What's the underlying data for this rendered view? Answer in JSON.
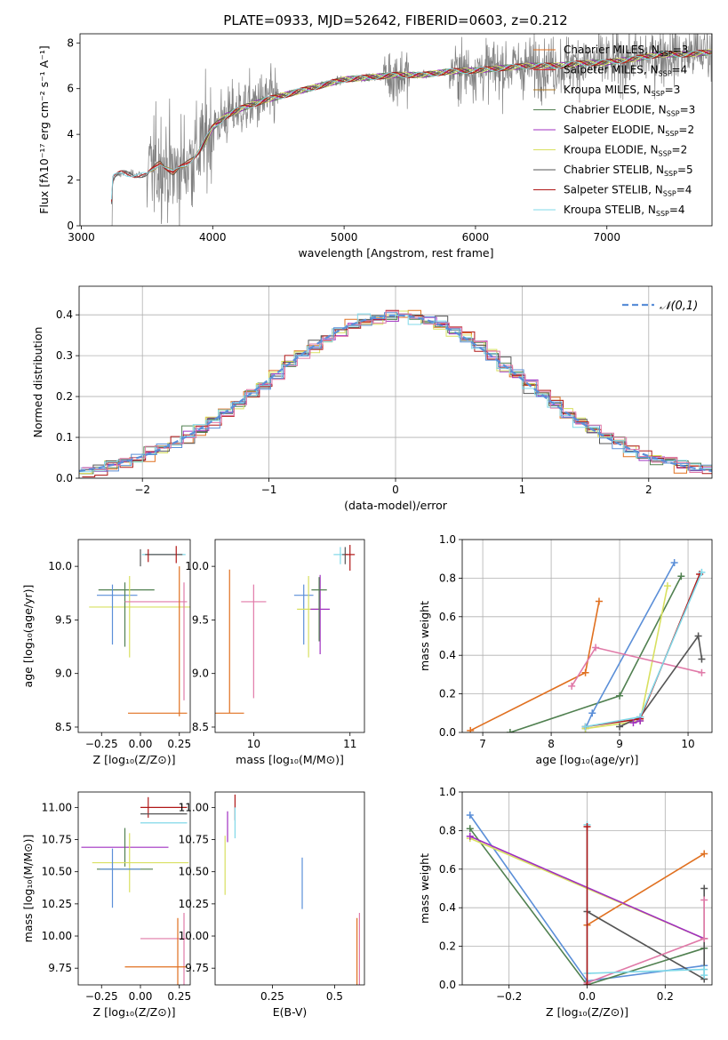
{
  "figure_title": "PLATE=0933, MJD=52642, FIBERID=0603, z=0.212",
  "colors": {
    "orange": "#e07020",
    "purple": "#a030c0",
    "yellow": "#d8e060",
    "gray": "#555555",
    "red": "#b01818",
    "cyan": "#80d8e8",
    "blue": "#5b8fd8",
    "green": "#508050",
    "pink": "#e07aa8",
    "brown": "#b07820",
    "spectrum": "#808080"
  },
  "chart_data": [
    {
      "id": "spectrum",
      "type": "line",
      "xlabel": "wavelength [Angstrom, rest frame]",
      "ylabel": "Flux [fλ10⁻¹⁷ erg cm⁻² s⁻¹ A⁻¹]",
      "xlim": [
        2990,
        7800
      ],
      "ylim": [
        0,
        8.4
      ],
      "xticks": [
        3000,
        4000,
        5000,
        6000,
        7000
      ],
      "yticks": [
        0,
        2,
        4,
        6,
        8
      ],
      "observed_continuum": {
        "x": [
          3220,
          3240,
          3300,
          3400,
          3500,
          3600,
          3700,
          3800,
          3900,
          4000,
          4100,
          4200,
          4400,
          4600,
          4800,
          5000,
          5200,
          5400,
          5600,
          5800,
          6000,
          6200,
          6400,
          6600,
          6800,
          7000,
          7200,
          7400,
          7600,
          7800
        ],
        "y": [
          0,
          2.1,
          2.3,
          2.25,
          2.2,
          2.8,
          2.3,
          2.7,
          3.3,
          4.3,
          4.8,
          5.1,
          5.5,
          5.8,
          6.1,
          6.4,
          6.5,
          6.6,
          6.6,
          6.75,
          6.8,
          6.9,
          7.0,
          7.0,
          7.1,
          7.15,
          7.3,
          7.5,
          7.5,
          7.6
        ]
      },
      "legend": [
        {
          "label": "Chabrier MILES, N",
          "sub": "SSP",
          "value": "=3",
          "color": "#e07020"
        },
        {
          "label": "Salpeter MILES, N",
          "sub": "SSP",
          "value": "=4",
          "color": "#d03030"
        },
        {
          "label": "Kroupa MILES, N",
          "sub": "SSP",
          "value": "=3",
          "color": "#b07820"
        },
        {
          "label": "Chabrier ELODIE, N",
          "sub": "SSP",
          "value": "=3",
          "color": "#508050"
        },
        {
          "label": "Salpeter ELODIE, N",
          "sub": "SSP",
          "value": "=2",
          "color": "#a030c0"
        },
        {
          "label": "Kroupa ELODIE, N",
          "sub": "SSP",
          "value": "=2",
          "color": "#d8e060"
        },
        {
          "label": "Chabrier STELIB, N",
          "sub": "SSP",
          "value": "=5",
          "color": "#555555"
        },
        {
          "label": "Salpeter STELIB, N",
          "sub": "SSP",
          "value": "=4",
          "color": "#b01818"
        },
        {
          "label": "Kroupa STELIB, N",
          "sub": "SSP",
          "value": "=4",
          "color": "#80d8e8"
        }
      ]
    },
    {
      "id": "residuals",
      "type": "line",
      "xlabel": "(data-model)/error",
      "ylabel": "Normed distribution",
      "xlim": [
        -2.5,
        2.5
      ],
      "ylim": [
        0,
        0.47
      ],
      "xticks": [
        -2,
        -1,
        0,
        1,
        2
      ],
      "yticks": [
        0.0,
        0.1,
        0.2,
        0.3,
        0.4
      ],
      "reference_label": "𝒩(0,1)",
      "reference_color": "#5b8fd8",
      "histogram_colors": [
        "#e07020",
        "#508050",
        "#a030c0",
        "#d8e060",
        "#555555",
        "#b01818",
        "#80d8e8",
        "#5b8fd8",
        "#e07aa8"
      ]
    },
    {
      "id": "age_vs_Z",
      "type": "scatter",
      "xlabel": "Z [log₁₀(Z/Z⊙)]",
      "ylabel": "age  [log₁₀(age/yr)]",
      "xlim": [
        -0.4,
        0.32
      ],
      "ylim": [
        8.45,
        10.25
      ],
      "xticks": [
        -0.25,
        0.0,
        0.25
      ],
      "xticklabels": [
        "−0.25",
        "0.00",
        "0.25"
      ],
      "yticks": [
        8.5,
        9.0,
        9.5,
        10.0
      ],
      "points": [
        {
          "x": 0.0,
          "y": 9.62,
          "xerr": 0.33,
          "yerr": 0.0,
          "color": "#d8e060"
        },
        {
          "x": -0.09,
          "y": 9.78,
          "xerr": 0.18,
          "yerr": 0.0,
          "color": "#508050"
        },
        {
          "x": -0.15,
          "y": 9.73,
          "xerr": 0.13,
          "yerr": 0.0,
          "color": "#5b8fd8"
        },
        {
          "x": -0.18,
          "y": 9.55,
          "xerr": 0.0,
          "yerr": 0.28,
          "color": "#5b8fd8"
        },
        {
          "x": -0.07,
          "y": 9.53,
          "xerr": 0.0,
          "yerr": 0.38,
          "color": "#d8e060"
        },
        {
          "x": -0.1,
          "y": 9.55,
          "xerr": 0.0,
          "yerr": 0.3,
          "color": "#508050"
        },
        {
          "x": 0.1,
          "y": 9.67,
          "xerr": 0.2,
          "yerr": 0.0,
          "color": "#e07aa8"
        },
        {
          "x": 0.28,
          "y": 9.3,
          "xerr": 0.0,
          "yerr": 0.55,
          "color": "#e07aa8"
        },
        {
          "x": 0.11,
          "y": 8.63,
          "xerr": 0.19,
          "yerr": 0.0,
          "color": "#e07020"
        },
        {
          "x": 0.25,
          "y": 9.3,
          "xerr": 0.0,
          "yerr": 0.7,
          "color": "#e07020"
        },
        {
          "x": 0.15,
          "y": 10.11,
          "xerr": 0.14,
          "yerr": 0.0,
          "color": "#80d8e8"
        },
        {
          "x": 0.15,
          "y": 10.11,
          "xerr": 0.12,
          "yerr": 0.0,
          "color": "#555555"
        },
        {
          "x": 0.23,
          "y": 10.11,
          "xerr": 0.0,
          "yerr": 0.08,
          "color": "#b01818"
        },
        {
          "x": 0.0,
          "y": 10.08,
          "xerr": 0.0,
          "yerr": 0.08,
          "color": "#555555"
        },
        {
          "x": 0.05,
          "y": 10.1,
          "xerr": 0.0,
          "yerr": 0.06,
          "color": "#b01818"
        }
      ]
    },
    {
      "id": "age_vs_mass",
      "type": "scatter",
      "xlabel": "mass [log₁₀(M/M⊙)]",
      "ylabel": "",
      "xlim": [
        9.6,
        11.15
      ],
      "ylim": [
        8.45,
        10.25
      ],
      "xticks": [
        10,
        11
      ],
      "yticks": [
        8.5,
        9.0,
        9.5,
        10.0
      ],
      "points": [
        {
          "x": 9.75,
          "y": 9.3,
          "xerr": 0.0,
          "yerr": 0.67,
          "color": "#e07020"
        },
        {
          "x": 9.75,
          "y": 8.63,
          "xerr": 0.15,
          "yerr": 0.0,
          "color": "#e07020"
        },
        {
          "x": 10.0,
          "y": 9.67,
          "xerr": 0.13,
          "yerr": 0.0,
          "color": "#e07aa8"
        },
        {
          "x": 10.0,
          "y": 9.3,
          "xerr": 0.0,
          "yerr": 0.53,
          "color": "#e07aa8"
        },
        {
          "x": 10.52,
          "y": 9.73,
          "xerr": 0.1,
          "yerr": 0.0,
          "color": "#5b8fd8"
        },
        {
          "x": 10.52,
          "y": 9.55,
          "xerr": 0.0,
          "yerr": 0.28,
          "color": "#5b8fd8"
        },
        {
          "x": 10.57,
          "y": 9.6,
          "xerr": 0.12,
          "yerr": 0.0,
          "color": "#d8e060"
        },
        {
          "x": 10.57,
          "y": 9.53,
          "xerr": 0.0,
          "yerr": 0.38,
          "color": "#d8e060"
        },
        {
          "x": 10.69,
          "y": 9.6,
          "xerr": 0.1,
          "yerr": 0.0,
          "color": "#a030c0"
        },
        {
          "x": 10.69,
          "y": 9.55,
          "xerr": 0.0,
          "yerr": 0.37,
          "color": "#a030c0"
        },
        {
          "x": 10.68,
          "y": 9.78,
          "xerr": 0.08,
          "yerr": 0.0,
          "color": "#508050"
        },
        {
          "x": 10.68,
          "y": 9.6,
          "xerr": 0.0,
          "yerr": 0.3,
          "color": "#508050"
        },
        {
          "x": 10.88,
          "y": 10.11,
          "xerr": 0.05,
          "yerr": 0.0,
          "color": "#80d8e8"
        },
        {
          "x": 10.9,
          "y": 10.1,
          "xerr": 0.0,
          "yerr": 0.08,
          "color": "#80d8e8"
        },
        {
          "x": 10.95,
          "y": 10.11,
          "xerr": 0.03,
          "yerr": 0.0,
          "color": "#555555"
        },
        {
          "x": 10.95,
          "y": 10.1,
          "xerr": 0.0,
          "yerr": 0.08,
          "color": "#555555"
        },
        {
          "x": 11.0,
          "y": 10.11,
          "xerr": 0.05,
          "yerr": 0.0,
          "color": "#b01818"
        },
        {
          "x": 11.0,
          "y": 10.08,
          "xerr": 0.0,
          "yerr": 0.12,
          "color": "#b01818"
        }
      ]
    },
    {
      "id": "massweight_vs_age",
      "type": "line",
      "xlabel": "age  [log₁₀(age/yr)]",
      "ylabel": "mass weight",
      "xlim": [
        6.7,
        10.35
      ],
      "ylim": [
        0,
        1.0
      ],
      "xticks": [
        7,
        8,
        9,
        10
      ],
      "yticks": [
        0.0,
        0.2,
        0.4,
        0.6,
        0.8,
        1.0
      ],
      "series": [
        {
          "color": "#e07020",
          "x": [
            6.82,
            8.5,
            8.7
          ],
          "y": [
            0.01,
            0.31,
            0.68
          ]
        },
        {
          "color": "#508050",
          "x": [
            7.4,
            9.0,
            9.9
          ],
          "y": [
            0.0,
            0.19,
            0.81
          ]
        },
        {
          "color": "#5b8fd8",
          "x": [
            8.5,
            8.6,
            9.8
          ],
          "y": [
            0.02,
            0.1,
            0.88
          ]
        },
        {
          "color": "#d8e060",
          "x": [
            8.5,
            9.3,
            9.7
          ],
          "y": [
            0.02,
            0.06,
            0.76
          ]
        },
        {
          "color": "#e07aa8",
          "x": [
            8.3,
            8.65,
            10.2
          ],
          "y": [
            0.24,
            0.44,
            0.31
          ]
        },
        {
          "color": "#555555",
          "x": [
            9.0,
            9.3,
            10.15,
            10.2
          ],
          "y": [
            0.03,
            0.08,
            0.5,
            0.38
          ]
        },
        {
          "color": "#b01818",
          "x": [
            8.5,
            9.3,
            10.17
          ],
          "y": [
            0.03,
            0.07,
            0.82
          ]
        },
        {
          "color": "#80d8e8",
          "x": [
            8.5,
            9.3,
            10.2
          ],
          "y": [
            0.03,
            0.08,
            0.83
          ]
        },
        {
          "color": "#a030c0",
          "x": [
            9.2,
            9.3
          ],
          "y": [
            0.05,
            0.06
          ]
        }
      ]
    },
    {
      "id": "mass_vs_Z",
      "type": "scatter",
      "xlabel": "Z [log₁₀(Z/Z⊙)]",
      "ylabel": "mass [log₁₀(M/M⊙)]",
      "xlim": [
        -0.4,
        0.32
      ],
      "ylim": [
        9.62,
        11.12
      ],
      "xticks": [
        -0.25,
        0.0,
        0.25
      ],
      "xticklabels": [
        "−0.25",
        "0.00",
        "0.25"
      ],
      "yticks": [
        9.75,
        10.0,
        10.25,
        10.5,
        10.75,
        11.0
      ],
      "points": [
        {
          "x": 0.15,
          "y": 11.0,
          "xerr": 0.15,
          "yerr": 0.0,
          "color": "#b01818"
        },
        {
          "x": 0.05,
          "y": 11.0,
          "xerr": 0.0,
          "yerr": 0.08,
          "color": "#b01818"
        },
        {
          "x": 0.15,
          "y": 10.95,
          "xerr": 0.15,
          "yerr": 0.0,
          "color": "#555555"
        },
        {
          "x": 0.15,
          "y": 10.88,
          "xerr": 0.15,
          "yerr": 0.0,
          "color": "#80d8e8"
        },
        {
          "x": -0.1,
          "y": 10.69,
          "xerr": 0.28,
          "yerr": 0.0,
          "color": "#a030c0"
        },
        {
          "x": -0.1,
          "y": 10.69,
          "xerr": 0.0,
          "yerr": 0.15,
          "color": "#508050"
        },
        {
          "x": 0.0,
          "y": 10.57,
          "xerr": 0.31,
          "yerr": 0.0,
          "color": "#d8e060"
        },
        {
          "x": -0.07,
          "y": 10.57,
          "xerr": 0.0,
          "yerr": 0.23,
          "color": "#d8e060"
        },
        {
          "x": -0.1,
          "y": 10.52,
          "xerr": 0.18,
          "yerr": 0.0,
          "color": "#508050"
        },
        {
          "x": -0.13,
          "y": 10.52,
          "xerr": 0.13,
          "yerr": 0.0,
          "color": "#5b8fd8"
        },
        {
          "x": -0.18,
          "y": 10.45,
          "xerr": 0.0,
          "yerr": 0.23,
          "color": "#5b8fd8"
        },
        {
          "x": 0.15,
          "y": 9.98,
          "xerr": 0.15,
          "yerr": 0.0,
          "color": "#e07aa8"
        },
        {
          "x": 0.28,
          "y": 9.9,
          "xerr": 0.0,
          "yerr": 0.28,
          "color": "#e07aa8"
        },
        {
          "x": 0.1,
          "y": 9.76,
          "xerr": 0.2,
          "yerr": 0.0,
          "color": "#e07020"
        },
        {
          "x": 0.24,
          "y": 9.87,
          "xerr": 0.0,
          "yerr": 0.27,
          "color": "#e07020"
        }
      ]
    },
    {
      "id": "mass_vs_EBV",
      "type": "scatter",
      "xlabel": "E(B-V)",
      "ylabel": "",
      "xlim": [
        0.02,
        0.62
      ],
      "ylim": [
        9.62,
        11.12
      ],
      "xticks": [
        0.25,
        0.5
      ],
      "yticks": [
        9.75,
        10.0,
        10.25,
        10.5,
        10.75,
        11.0
      ],
      "points": [
        {
          "x": 0.1,
          "y": 11.0,
          "xerr": 0.0,
          "yerr": 0.1,
          "color": "#b01818"
        },
        {
          "x": 0.1,
          "y": 10.88,
          "xerr": 0.0,
          "yerr": 0.12,
          "color": "#80d8e8"
        },
        {
          "x": 0.07,
          "y": 10.85,
          "xerr": 0.0,
          "yerr": 0.12,
          "color": "#a030c0"
        },
        {
          "x": 0.06,
          "y": 10.55,
          "xerr": 0.0,
          "yerr": 0.23,
          "color": "#d8e060"
        },
        {
          "x": 0.37,
          "y": 10.41,
          "xerr": 0.0,
          "yerr": 0.2,
          "color": "#5b8fd8"
        },
        {
          "x": 0.6,
          "y": 9.9,
          "xerr": 0.0,
          "yerr": 0.28,
          "color": "#e07aa8"
        },
        {
          "x": 0.59,
          "y": 9.87,
          "xerr": 0.0,
          "yerr": 0.27,
          "color": "#e07020"
        }
      ]
    },
    {
      "id": "massweight_vs_Z",
      "type": "line",
      "xlabel": "Z [log₁₀(Z/Z⊙)]",
      "ylabel": "mass weight",
      "xlim": [
        -0.32,
        0.32
      ],
      "ylim": [
        0,
        1.0
      ],
      "xticks": [
        -0.2,
        0.0,
        0.2
      ],
      "xticklabels": [
        "−0.2",
        "0.0",
        "0.2"
      ],
      "yticks": [
        0.0,
        0.2,
        0.4,
        0.6,
        0.8,
        1.0
      ],
      "series": [
        {
          "color": "#5b8fd8",
          "x": [
            -0.3,
            0.0,
            0.3
          ],
          "y": [
            0.88,
            0.02,
            0.1
          ]
        },
        {
          "color": "#508050",
          "x": [
            -0.3,
            0.0,
            0.3
          ],
          "y": [
            0.81,
            0.0,
            0.19
          ]
        },
        {
          "color": "#e07020",
          "x": [
            0.0,
            0.3
          ],
          "y": [
            0.31,
            0.68
          ]
        },
        {
          "color": "#d8e060",
          "x": [
            -0.3,
            0.3
          ],
          "y": [
            0.76,
            0.24
          ]
        },
        {
          "color": "#a030c0",
          "x": [
            -0.3,
            0.3
          ],
          "y": [
            0.77,
            0.24
          ]
        },
        {
          "color": "#555555",
          "x": [
            0.0,
            0.3,
            0.3
          ],
          "y": [
            0.38,
            0.03,
            0.5
          ]
        },
        {
          "color": "#e07aa8",
          "x": [
            0.0,
            0.3,
            0.3
          ],
          "y": [
            0.01,
            0.24,
            0.44
          ]
        },
        {
          "color": "#80d8e8",
          "x": [
            0.0,
            0.0,
            0.3,
            0.3
          ],
          "y": [
            0.83,
            0.06,
            0.08,
            0.05
          ]
        },
        {
          "color": "#b01818",
          "x": [
            0.0,
            0.0
          ],
          "y": [
            0.0,
            0.82
          ]
        }
      ]
    }
  ]
}
